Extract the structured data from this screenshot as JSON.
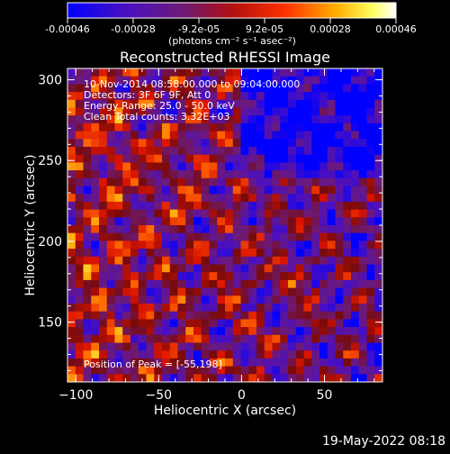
{
  "colorbar": {
    "tick_labels": [
      "-0.00046",
      "-0.00028",
      "-9.2e-05",
      "9.2e-05",
      "0.00028",
      "0.00046"
    ],
    "unit_label": "(photons cm⁻² s⁻¹ asec⁻²)",
    "range": [
      -0.00046,
      0.00046
    ],
    "colors": [
      "#0000ff",
      "#5a1aa8",
      "#7a2060",
      "#c01010",
      "#ff6000",
      "#ffd020",
      "#ffffff"
    ]
  },
  "chart_data": {
    "type": "heatmap",
    "title": "Reconstructed RHESSI Image",
    "xlabel": "Heliocentric X (arcsec)",
    "ylabel": "Heliocentric Y (arcsec)",
    "xlim": [
      -105,
      85
    ],
    "ylim": [
      113,
      307
    ],
    "x_ticks": [
      -100,
      -50,
      0,
      50
    ],
    "y_ticks": [
      150,
      200,
      250,
      300
    ],
    "grid_cells": [
      40,
      40
    ],
    "peak": {
      "x": -55,
      "y": 198,
      "label": "Position of Peak = [-55,198]"
    },
    "annotations": [
      "10-Nov-2014 08:58:00.000 to 09:04:00.000",
      "Detectors: 3F 6F 9F, Att 0",
      "Energy Range: 25.0 - 50.0 keV",
      "Clean    Total counts: 3.32E+03"
    ]
  },
  "footer": {
    "date": "19-May-2022 08:18"
  }
}
